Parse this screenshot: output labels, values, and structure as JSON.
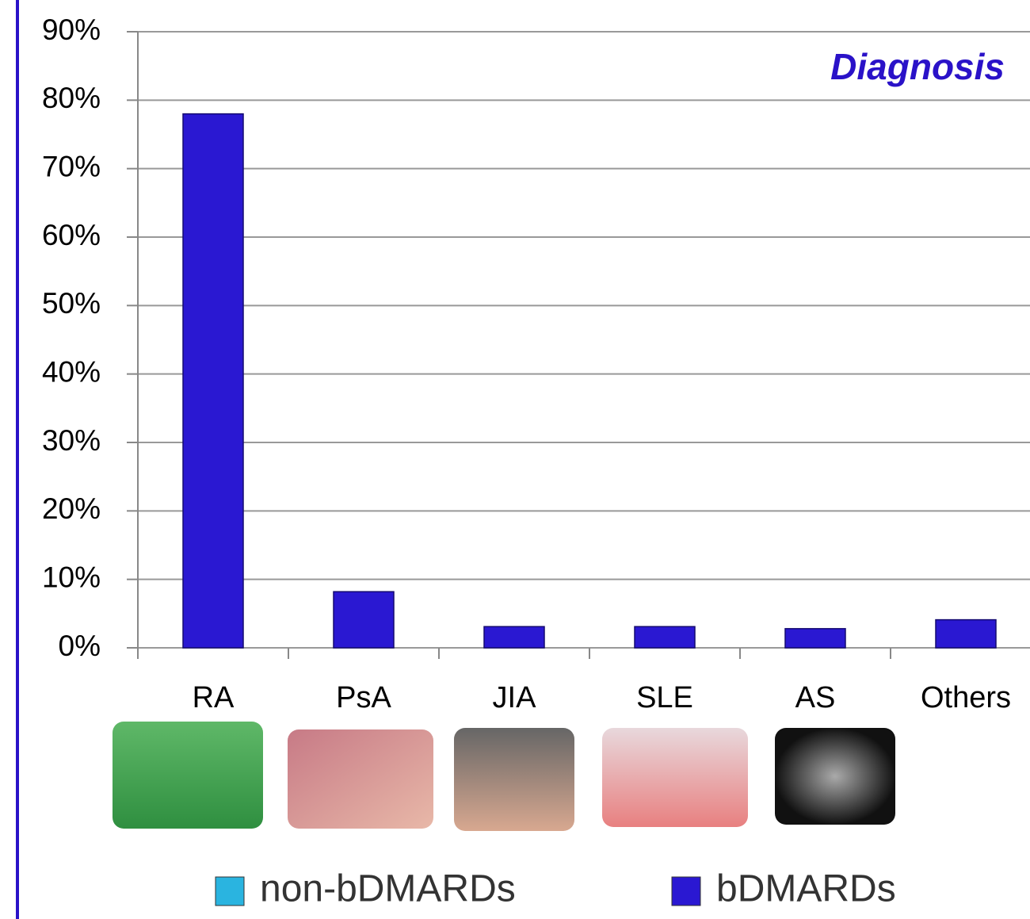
{
  "chart_data": {
    "type": "bar",
    "annotation": "Diagnosis",
    "categories": [
      "RA",
      "PsA",
      "JIA",
      "SLE",
      "AS",
      "Others"
    ],
    "series": [
      {
        "name": "non-bDMARDs",
        "color": "#2ab4e0",
        "values": [
          null,
          null,
          null,
          null,
          null,
          null
        ]
      },
      {
        "name": "bDMARDs",
        "color": "#2a18d2",
        "values": [
          78,
          8.2,
          3.1,
          3.1,
          2.8,
          4.1
        ]
      }
    ],
    "ylim": [
      0,
      90
    ],
    "yticks": [
      {
        "value": 0,
        "label": "0%"
      },
      {
        "value": 10,
        "label": "10%"
      },
      {
        "value": 20,
        "label": "20%"
      },
      {
        "value": 30,
        "label": "30%"
      },
      {
        "value": 40,
        "label": "40%"
      },
      {
        "value": 50,
        "label": "50%"
      },
      {
        "value": 60,
        "label": "60%"
      },
      {
        "value": 70,
        "label": "70%"
      },
      {
        "value": 80,
        "label": "80%"
      },
      {
        "value": 90,
        "label": "90%"
      }
    ],
    "grid": true
  }
}
